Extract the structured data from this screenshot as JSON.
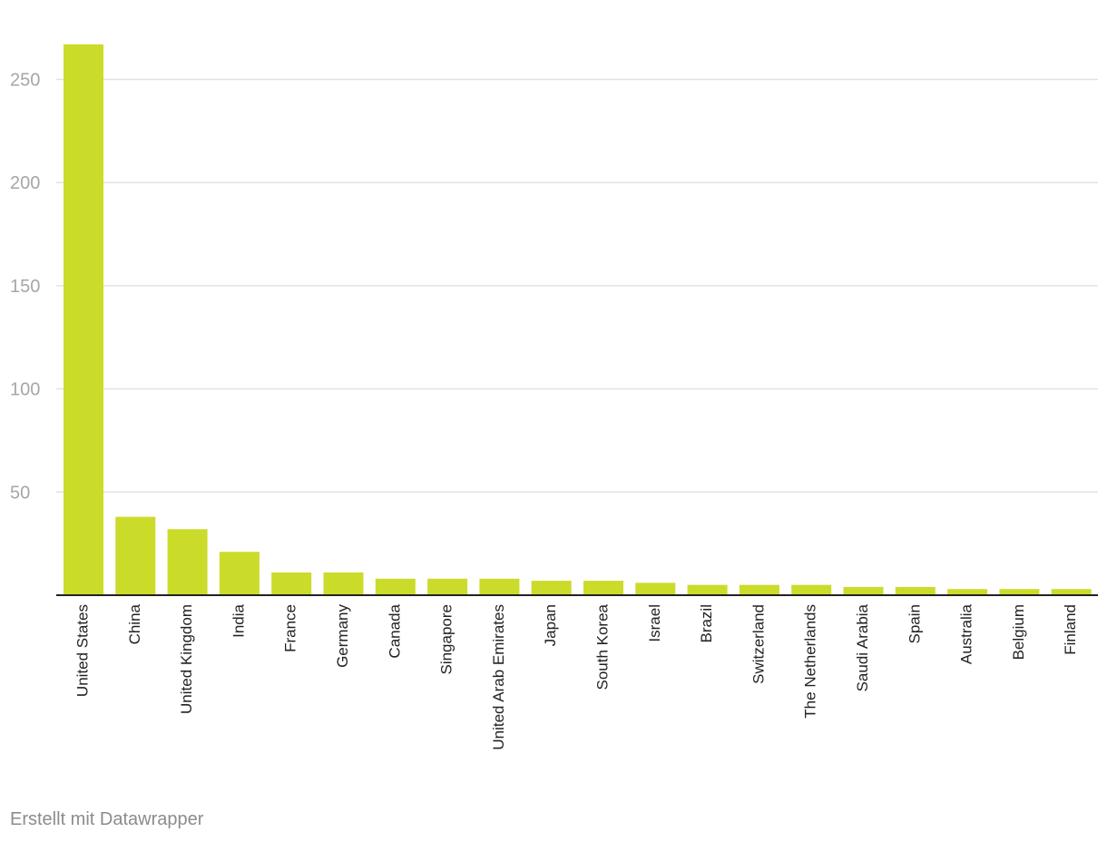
{
  "footer": {
    "credit": "Erstellt mit Datawrapper"
  },
  "colors": {
    "bar": "#cbdb2a",
    "grid": "#e2e2e2",
    "tick_text": "#a6a6a6",
    "category_text": "#222222",
    "footer_text": "#8c8c8c"
  },
  "chart_data": {
    "type": "bar",
    "title": "",
    "xlabel": "",
    "ylabel": "",
    "ylim": [
      0,
      267
    ],
    "yticks": [
      50,
      100,
      150,
      200,
      250
    ],
    "grid": true,
    "categories": [
      "United States",
      "China",
      "United Kingdom",
      "India",
      "France",
      "Germany",
      "Canada",
      "Singapore",
      "United Arab Emirates",
      "Japan",
      "South Korea",
      "Israel",
      "Brazil",
      "Switzerland",
      "The Netherlands",
      "Saudi Arabia",
      "Spain",
      "Australia",
      "Belgium",
      "Finland"
    ],
    "values": [
      267,
      38,
      32,
      21,
      11,
      11,
      8,
      8,
      8,
      7,
      7,
      6,
      5,
      5,
      5,
      4,
      4,
      3,
      3,
      3
    ]
  }
}
